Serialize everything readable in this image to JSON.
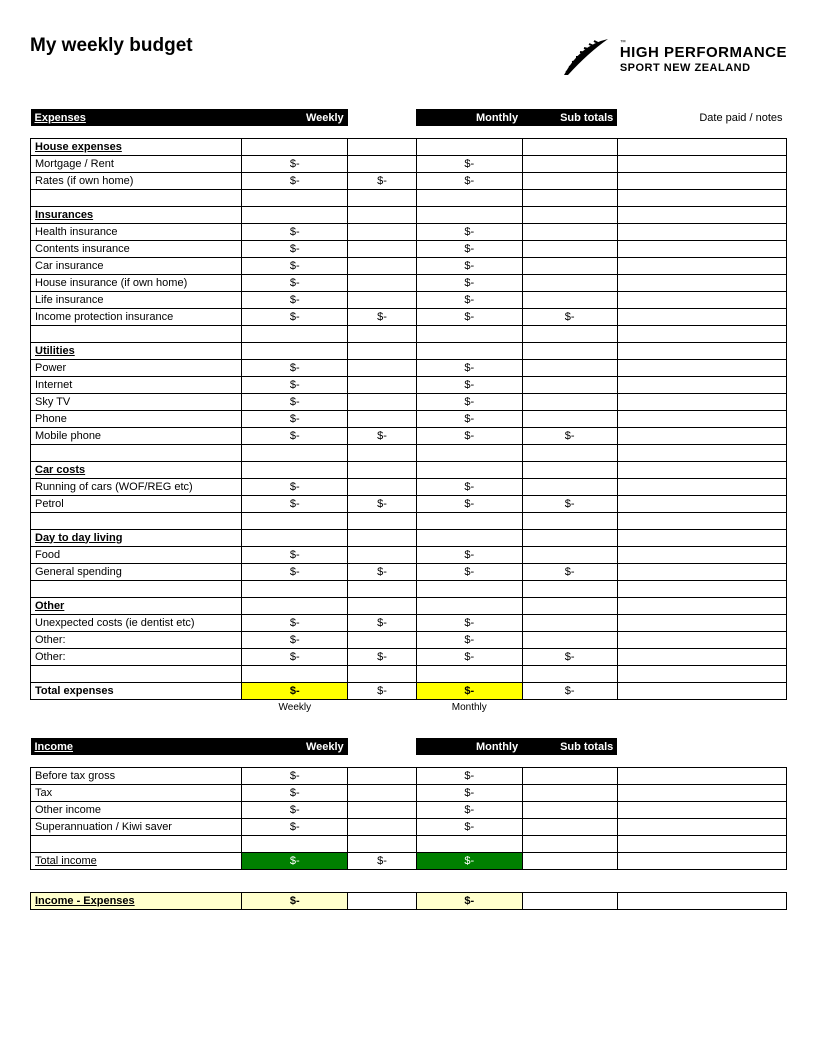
{
  "title": "My weekly budget",
  "logo": {
    "line1": "HIGH PERFORMANCE",
    "line2": "SPORT NEW ZEALAND",
    "tm": "™"
  },
  "colors": {
    "black": "#000000",
    "white": "#ffffff",
    "yellow": "#ffff00",
    "pale_yellow": "#ffffcc",
    "green": "#008000"
  },
  "headers": {
    "expenses": "Expenses",
    "income": "Income",
    "weekly": "Weekly",
    "monthly": "Monthly",
    "sub_totals": "Sub totals",
    "date_notes": "Date paid / notes"
  },
  "placeholder": "$-",
  "axis": {
    "weekly": "Weekly",
    "monthly": "Monthly"
  },
  "sections": {
    "house": {
      "title": "House expenses",
      "rows": [
        {
          "label": "Mortgage / Rent",
          "weekly": "$-",
          "mid": "",
          "monthly": "$-",
          "sub": ""
        },
        {
          "label": "Rates (if own home)",
          "weekly": "$-",
          "mid": "$-",
          "monthly": "$-",
          "sub": ""
        }
      ]
    },
    "insurances": {
      "title": "Insurances",
      "rows": [
        {
          "label": "Health insurance",
          "weekly": "$-",
          "mid": "",
          "monthly": "$-",
          "sub": ""
        },
        {
          "label": "Contents insurance",
          "weekly": "$-",
          "mid": "",
          "monthly": "$-",
          "sub": ""
        },
        {
          "label": "Car insurance",
          "weekly": "$-",
          "mid": "",
          "monthly": "$-",
          "sub": ""
        },
        {
          "label": "House insurance (if own home)",
          "weekly": "$-",
          "mid": "",
          "monthly": "$-",
          "sub": ""
        },
        {
          "label": "Life insurance",
          "weekly": "$-",
          "mid": "",
          "monthly": "$-",
          "sub": ""
        },
        {
          "label": "Income protection insurance",
          "weekly": "$-",
          "mid": "$-",
          "monthly": "$-",
          "sub": "$-"
        }
      ]
    },
    "utilities": {
      "title": "Utilities",
      "rows": [
        {
          "label": "Power",
          "weekly": "$-",
          "mid": "",
          "monthly": "$-",
          "sub": ""
        },
        {
          "label": "Internet",
          "weekly": "$-",
          "mid": "",
          "monthly": "$-",
          "sub": ""
        },
        {
          "label": "Sky TV",
          "weekly": "$-",
          "mid": "",
          "monthly": "$-",
          "sub": ""
        },
        {
          "label": "Phone",
          "weekly": "$-",
          "mid": "",
          "monthly": "$-",
          "sub": ""
        },
        {
          "label": "Mobile phone",
          "weekly": "$-",
          "mid": "$-",
          "monthly": "$-",
          "sub": "$-"
        }
      ]
    },
    "car": {
      "title": "Car costs",
      "rows": [
        {
          "label": "Running of cars (WOF/REG etc)",
          "weekly": "$-",
          "mid": "",
          "monthly": "$-",
          "sub": ""
        },
        {
          "label": "Petrol",
          "weekly": "$-",
          "mid": "$-",
          "monthly": "$-",
          "sub": "$-"
        }
      ]
    },
    "daily": {
      "title": "Day to day living",
      "rows": [
        {
          "label": "Food",
          "weekly": "$-",
          "mid": "",
          "monthly": "$-",
          "sub": ""
        },
        {
          "label": "General spending",
          "weekly": "$-",
          "mid": "$-",
          "monthly": "$-",
          "sub": "$-"
        }
      ]
    },
    "other": {
      "title": "Other",
      "rows": [
        {
          "label": "Unexpected costs (ie dentist etc)",
          "weekly": "$-",
          "mid": "$-",
          "monthly": "$-",
          "sub": ""
        },
        {
          "label": "Other:",
          "weekly": "$-",
          "mid": "",
          "monthly": "$-",
          "sub": ""
        },
        {
          "label": "Other:",
          "weekly": "$-",
          "mid": "$-",
          "monthly": "$-",
          "sub": "$-"
        }
      ]
    }
  },
  "totals": {
    "expenses": {
      "label": "Total expenses",
      "weekly": "$-",
      "mid": "$-",
      "monthly": "$-",
      "sub": "$-"
    },
    "income": {
      "label": "Total income",
      "weekly": "$-",
      "mid": "$-",
      "monthly": "$-",
      "sub": ""
    }
  },
  "income_rows": [
    {
      "label": "Before tax gross",
      "weekly": "$-",
      "monthly": "$-"
    },
    {
      "label": "Tax",
      "weekly": "$-",
      "monthly": "$-"
    },
    {
      "label": "Other income",
      "weekly": "$-",
      "monthly": "$-"
    },
    {
      "label": "Superannuation / Kiwi saver",
      "weekly": "$-",
      "monthly": "$-"
    }
  ],
  "net": {
    "label": "Income - Expenses",
    "weekly": "$-",
    "monthly": "$-"
  }
}
